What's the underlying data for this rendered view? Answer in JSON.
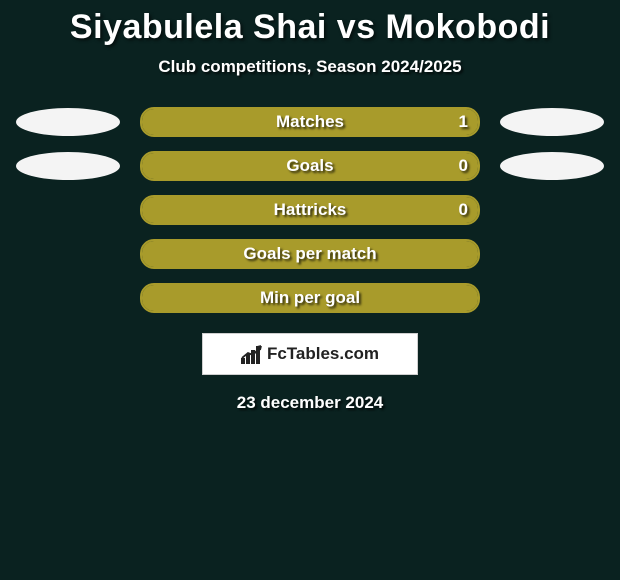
{
  "background_color": "#0a2220",
  "title": "Siyabulela Shai vs Mokobodi",
  "subtitle": "Club competitions, Season 2024/2025",
  "date": "23 december 2024",
  "logo_text": "FcTables.com",
  "ellipse_color": "#f4f4f4",
  "bar_colors": {
    "fill": "#a89b2b",
    "border": "#a89b2b",
    "empty": "transparent"
  },
  "text_color": "#ffffff",
  "rows": [
    {
      "label": "Matches",
      "left_value": "",
      "right_value": "1",
      "left_fill_pct": 0,
      "right_fill_pct": 100,
      "show_left_ellipse": true,
      "show_right_ellipse": true
    },
    {
      "label": "Goals",
      "left_value": "",
      "right_value": "0",
      "left_fill_pct": 0,
      "right_fill_pct": 100,
      "show_left_ellipse": true,
      "show_right_ellipse": true
    },
    {
      "label": "Hattricks",
      "left_value": "",
      "right_value": "0",
      "left_fill_pct": 0,
      "right_fill_pct": 100,
      "show_left_ellipse": false,
      "show_right_ellipse": false
    },
    {
      "label": "Goals per match",
      "left_value": "",
      "right_value": "",
      "left_fill_pct": 0,
      "right_fill_pct": 100,
      "show_left_ellipse": false,
      "show_right_ellipse": false
    },
    {
      "label": "Min per goal",
      "left_value": "",
      "right_value": "",
      "left_fill_pct": 0,
      "right_fill_pct": 100,
      "show_left_ellipse": false,
      "show_right_ellipse": false
    }
  ]
}
